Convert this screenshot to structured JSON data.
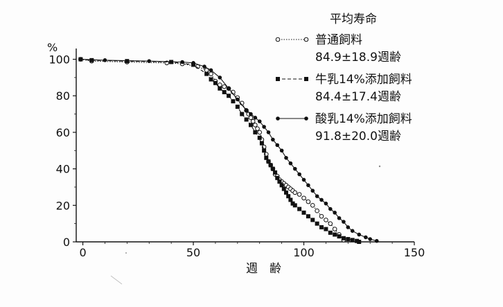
{
  "chart_data": {
    "type": "line",
    "title": "",
    "xlabel": "週　齢",
    "ylabel": "%",
    "xlim": [
      -3,
      150
    ],
    "ylim": [
      0,
      104
    ],
    "x_ticks": [
      "0",
      "50",
      "100",
      "150"
    ],
    "y_ticks": [
      "0",
      "20",
      "40",
      "60",
      "80",
      "100"
    ],
    "grid": false,
    "legend": {
      "position": "top-right",
      "title": "平均寿命"
    },
    "series": [
      {
        "name": "普通飼料",
        "stat": "84.9±18.9週齢",
        "marker": "open-circle",
        "line": "dotted",
        "x": [
          -1,
          4,
          20,
          38,
          45,
          52,
          56,
          58,
          60,
          62,
          64,
          66,
          68,
          70,
          72,
          74,
          75,
          76,
          77,
          78,
          79,
          80,
          81,
          82,
          83,
          84,
          85,
          86,
          87,
          88,
          89,
          90,
          91,
          92,
          93,
          94,
          95,
          96,
          98,
          100,
          102,
          104,
          106,
          108,
          110,
          112,
          114,
          116,
          118
        ],
        "y": [
          100,
          99,
          98.5,
          98,
          97.5,
          96,
          94,
          92,
          88,
          86,
          85,
          84,
          82,
          79,
          76,
          72,
          70,
          68,
          66,
          64,
          62,
          60,
          56,
          52,
          48,
          44,
          42,
          40,
          37,
          36,
          34,
          33,
          32,
          31,
          30,
          29,
          28,
          27,
          26,
          24,
          22,
          20,
          17,
          14,
          12,
          10,
          7,
          4,
          1
        ]
      },
      {
        "name": "牛乳14%添加飼料",
        "stat": "84.4±17.4週齢",
        "marker": "filled-square",
        "line": "dashed",
        "x": [
          -1,
          4,
          20,
          40,
          50,
          56,
          58,
          60,
          62,
          64,
          66,
          68,
          70,
          72,
          74,
          76,
          78,
          80,
          81,
          82,
          83,
          84,
          85,
          86,
          87,
          88,
          89,
          90,
          91,
          92,
          93,
          94,
          95,
          96,
          98,
          100,
          102,
          104,
          106,
          108,
          110,
          112,
          114,
          116,
          118,
          120,
          122,
          124,
          125
        ],
        "y": [
          100,
          99.5,
          99,
          98.5,
          97,
          92,
          89,
          87,
          84,
          82,
          80,
          77,
          74,
          70,
          67,
          64,
          60,
          57,
          54,
          50,
          46,
          44,
          42,
          40,
          38,
          35,
          33,
          31,
          29,
          27,
          25,
          23,
          21,
          20,
          18,
          16,
          14,
          12,
          10,
          8,
          7,
          5,
          4,
          3,
          2,
          1.5,
          1,
          0.5,
          0
        ]
      },
      {
        "name": "酸乳14%添加飼料",
        "stat": "91.8±20.0週齢",
        "marker": "filled-circle",
        "line": "solid",
        "x": [
          -1,
          10,
          30,
          45,
          50,
          55,
          58,
          62,
          66,
          70,
          74,
          76,
          78,
          80,
          82,
          84,
          86,
          88,
          90,
          92,
          94,
          96,
          98,
          100,
          102,
          104,
          106,
          108,
          110,
          112,
          114,
          116,
          118,
          120,
          122,
          125,
          128,
          130,
          133
        ],
        "y": [
          100,
          99.5,
          99,
          98.5,
          98,
          96,
          94,
          90,
          84,
          78,
          72,
          70,
          68,
          66,
          63,
          60,
          56,
          53,
          50,
          46,
          43,
          40,
          37,
          34,
          31,
          28,
          25,
          23,
          21,
          18,
          16,
          13,
          11,
          8,
          6,
          4,
          2.5,
          1.5,
          0.5
        ]
      }
    ]
  }
}
